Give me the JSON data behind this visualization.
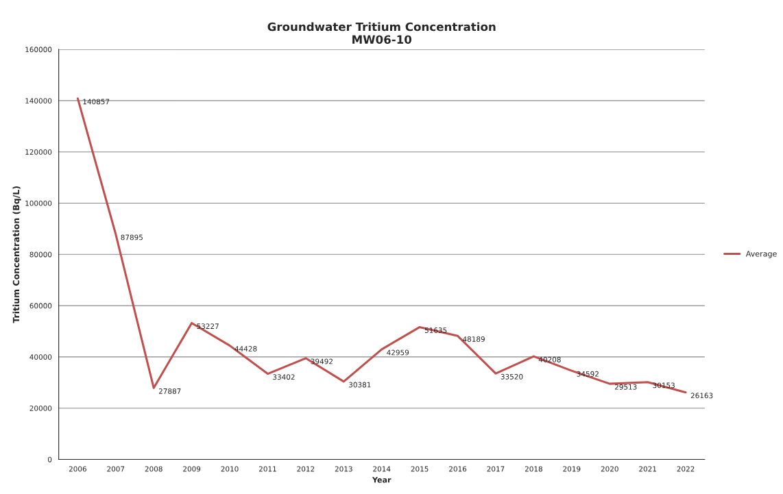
{
  "chart_data": {
    "type": "line",
    "title": "Groundwater Tritium Concentration\nMW06-10",
    "xlabel": "Year",
    "ylabel": "Tritium Concentration (Bq/L)",
    "categories": [
      "2006",
      "2007",
      "2008",
      "2009",
      "2010",
      "2011",
      "2012",
      "2013",
      "2014",
      "2015",
      "2016",
      "2017",
      "2018",
      "2019",
      "2020",
      "2021",
      "2022"
    ],
    "series": [
      {
        "name": "Average",
        "color": "#c0504d",
        "values": [
          140857,
          87895,
          27887,
          53227,
          44428,
          33402,
          39492,
          30381,
          42959,
          51635,
          48189,
          33520,
          40208,
          34592,
          29513,
          30153,
          26163
        ]
      }
    ],
    "ylim": [
      0,
      160000
    ],
    "yticks": [
      0,
      20000,
      40000,
      60000,
      80000,
      100000,
      120000,
      140000,
      160000
    ],
    "grid": "y",
    "legend": "right",
    "data_labels": true,
    "marker": "none",
    "line_style": "solid"
  }
}
